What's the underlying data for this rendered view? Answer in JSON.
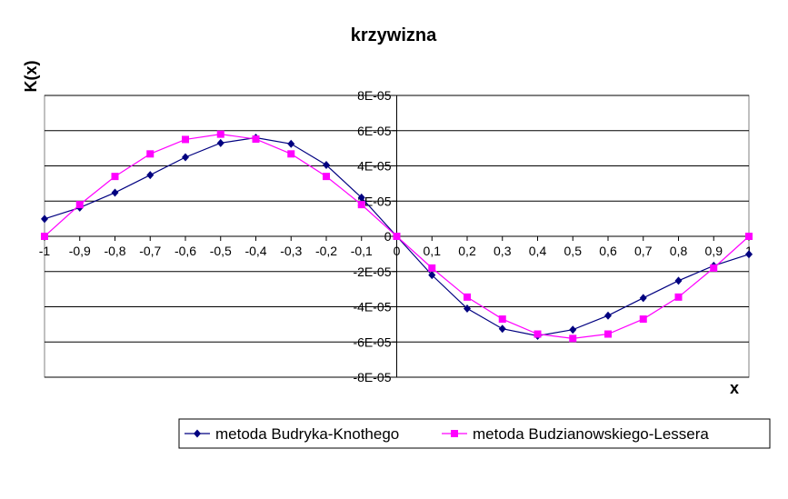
{
  "chart_data": {
    "type": "line",
    "title": "krzywizna",
    "xlabel": "x",
    "ylabel": "K(x)",
    "xlim": [
      -1,
      1
    ],
    "ylim": [
      -8e-05,
      8e-05
    ],
    "grid": "horizontal",
    "legend_position": "bottom-right",
    "x_tick_labels": [
      "-1",
      "-0,9",
      "-0,8",
      "-0,7",
      "-0,6",
      "-0,5",
      "-0,4",
      "-0,3",
      "-0,2",
      "-0,1",
      "0",
      "0,1",
      "0,2",
      "0,3",
      "0,4",
      "0,5",
      "0,6",
      "0,7",
      "0,8",
      "0,9",
      "1"
    ],
    "y_ticks": [
      8e-05,
      6e-05,
      4e-05,
      2e-05,
      0,
      -2e-05,
      -4e-05,
      -6e-05,
      -8e-05
    ],
    "y_tick_labels": [
      "8E-05",
      "6E-05",
      "4E-05",
      "2E-05",
      "0",
      "-2E-05",
      "-4E-05",
      "-6E-05",
      "-8E-05"
    ],
    "x": [
      -1,
      -0.9,
      -0.8,
      -0.7,
      -0.6,
      -0.5,
      -0.4,
      -0.3,
      -0.2,
      -0.1,
      0,
      0.1,
      0.2,
      0.3,
      0.4,
      0.5,
      0.6,
      0.7,
      0.8,
      0.9,
      1
    ],
    "series": [
      {
        "name": "metoda Budryka-Knothego",
        "color": "#000080",
        "marker": "diamond",
        "values": [
          9.9e-06,
          1.63e-05,
          2.48e-05,
          3.48e-05,
          4.49e-05,
          5.3e-05,
          5.6e-05,
          5.25e-05,
          4.05e-05,
          2.2e-05,
          0,
          -2.2e-05,
          -4.1e-05,
          -5.25e-05,
          -5.65e-05,
          -5.3e-05,
          -4.5e-05,
          -3.5e-05,
          -2.52e-05,
          -1.67e-05,
          -1.02e-05
        ]
      },
      {
        "name": "metoda Budzianowskiego-Lessera",
        "color": "#ff00ff",
        "marker": "square",
        "values": [
          0,
          1.8e-05,
          3.4e-05,
          4.68e-05,
          5.5e-05,
          5.8e-05,
          5.52e-05,
          4.68e-05,
          3.4e-05,
          1.8e-05,
          0,
          -1.8e-05,
          -3.45e-05,
          -4.7e-05,
          -5.55e-05,
          -5.8e-05,
          -5.55e-05,
          -4.7e-05,
          -3.45e-05,
          -1.8e-05,
          0
        ]
      }
    ]
  }
}
